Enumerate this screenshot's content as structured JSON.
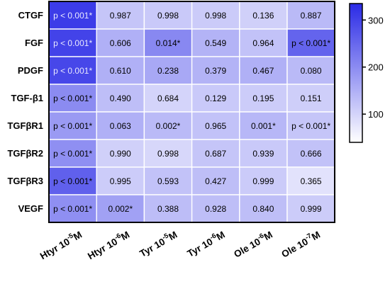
{
  "chart_data": {
    "type": "heatmap",
    "rows": [
      "CTGF",
      "FGF",
      "PDGF",
      "TGF-β1",
      "TGFβR1",
      "TGFβR2",
      "TGFβR3",
      "VEGF"
    ],
    "columns": [
      {
        "base": "Htyr 10",
        "exp": "-5",
        "unit": "M"
      },
      {
        "base": "Htyr 10",
        "exp": "-6",
        "unit": "M"
      },
      {
        "base": "Tyr 10",
        "exp": "-5",
        "unit": "M"
      },
      {
        "base": "Tyr 10",
        "exp": "-6",
        "unit": "M"
      },
      {
        "base": "Ole 10",
        "exp": "-6",
        "unit": "M"
      },
      {
        "base": "Ole 10",
        "exp": "-7",
        "unit": "M"
      }
    ],
    "cell_labels": [
      [
        "p < 0.001*",
        "0.987",
        "0.998",
        "0.998",
        "0.136",
        "0.887"
      ],
      [
        "p < 0.001*",
        "0.606",
        "0.014*",
        "0.549",
        "0.964",
        "p < 0.001*"
      ],
      [
        "p < 0.001*",
        "0.610",
        "0.238",
        "0.379",
        "0.467",
        "0.080"
      ],
      [
        "p < 0.001*",
        "0.490",
        "0.684",
        "0.129",
        "0.195",
        "0.151"
      ],
      [
        "p < 0.001*",
        "0.063",
        "0.002*",
        "0.965",
        "0.001*",
        "p < 0.001*"
      ],
      [
        "p < 0.001*",
        "0.990",
        "0.998",
        "0.687",
        "0.939",
        "0.666"
      ],
      [
        "p < 0.001*",
        "0.995",
        "0.593",
        "0.427",
        "0.999",
        "0.365"
      ],
      [
        "p < 0.001*",
        "0.002*",
        "0.388",
        "0.928",
        "0.840",
        "0.999"
      ]
    ],
    "values": [
      [
        310,
        120,
        115,
        112,
        105,
        135
      ],
      [
        300,
        150,
        205,
        145,
        125,
        255
      ],
      [
        295,
        150,
        160,
        145,
        150,
        135
      ],
      [
        200,
        130,
        100,
        115,
        110,
        108
      ],
      [
        180,
        150,
        135,
        125,
        140,
        120
      ],
      [
        195,
        105,
        95,
        120,
        115,
        125
      ],
      [
        260,
        110,
        125,
        130,
        112,
        80
      ],
      [
        195,
        170,
        132,
        130,
        130,
        110
      ]
    ],
    "colorbar": {
      "min": 40,
      "max": 335,
      "ticks": [
        100,
        200,
        300
      ],
      "colors": [
        "#ffffff",
        "#2a2ae6"
      ]
    },
    "grid": true,
    "legend_position": "right"
  }
}
